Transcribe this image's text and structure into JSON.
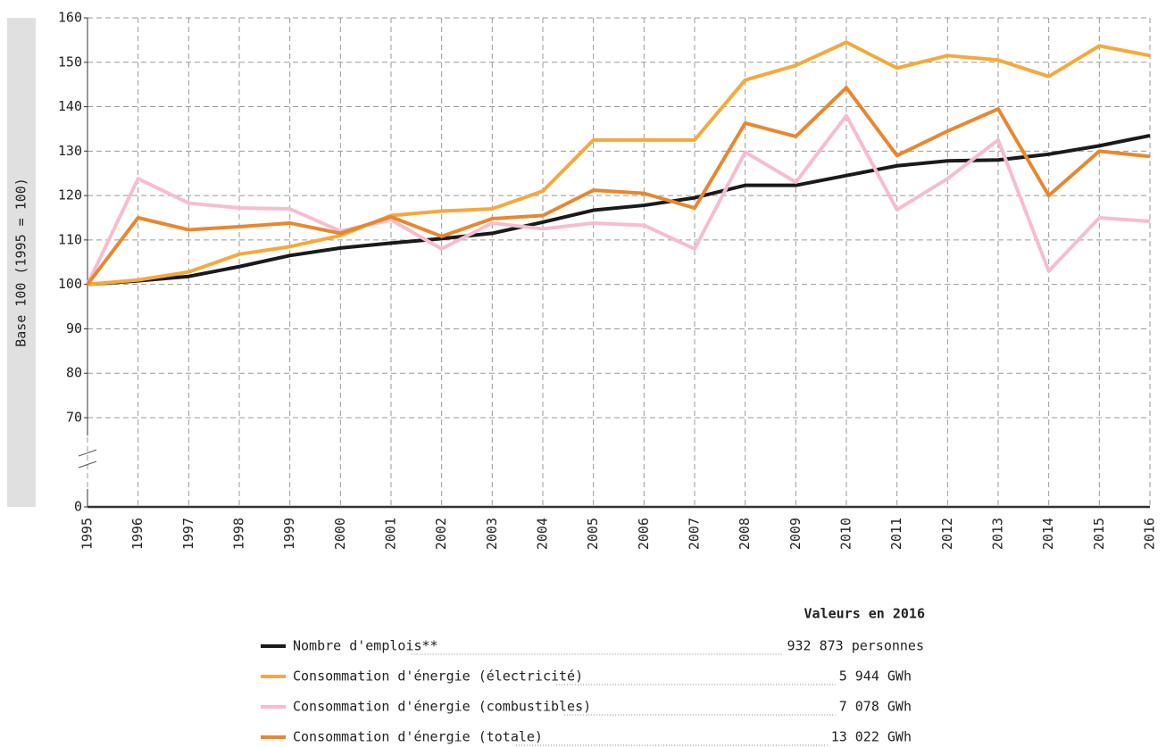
{
  "chart_data": {
    "type": "line",
    "y_label": "Base 100 (1995 = 100)",
    "x": [
      "1995",
      "1996",
      "1997",
      "1998",
      "1999",
      "2000",
      "2001",
      "2002",
      "2003",
      "2004",
      "2005",
      "2006",
      "2007",
      "2008",
      "2009",
      "2010",
      "2011",
      "2012",
      "2013",
      "2014",
      "2015",
      "2016"
    ],
    "ylim": [
      0,
      160
    ],
    "axis_break": [
      0,
      70
    ],
    "yticks": [
      0,
      70,
      80,
      90,
      100,
      110,
      120,
      130,
      140,
      150,
      160
    ],
    "grid": true,
    "legend_title": "Valeurs en 2016",
    "series": [
      {
        "name": "Nombre d'emplois**",
        "color": "#1a1a1a",
        "value_2016": "932 873 personnes",
        "values": [
          100,
          100.8,
          101.8,
          104,
          106.5,
          108.2,
          109.3,
          110.3,
          111.5,
          114,
          116.7,
          117.8,
          119.5,
          122.3,
          122.3,
          124.5,
          126.7,
          127.8,
          128,
          129.3,
          131.2,
          133.5
        ]
      },
      {
        "name": "Consommation d'énergie (électricité)",
        "color": "#f5a93a",
        "value_2016": "5 944 GWh",
        "values": [
          100,
          101,
          102.8,
          106.8,
          108.5,
          111,
          115.5,
          116.5,
          117,
          121,
          132.5,
          132.5,
          132.5,
          146,
          149.3,
          154.5,
          148.7,
          151.5,
          150.5,
          146.8,
          153.7,
          151.5
        ]
      },
      {
        "name": "Consommation d'énergie (combustibles)",
        "color": "#f7bcd0",
        "value_2016": "7 078 GWh",
        "values": [
          100,
          123.8,
          118.3,
          117.2,
          117,
          112,
          114.5,
          108,
          113.8,
          112.5,
          113.8,
          113.3,
          108,
          129.8,
          123,
          138,
          116.8,
          123.8,
          132.5,
          103,
          115,
          114.2
        ]
      },
      {
        "name": "Consommation d'énergie (totale)",
        "color": "#e8872e",
        "value_2016": "13 022 GWh",
        "values": [
          100,
          115,
          112.3,
          113,
          113.8,
          111.5,
          115.2,
          110.8,
          114.8,
          115.5,
          121.2,
          120.5,
          117.2,
          136.3,
          133.3,
          144.3,
          129,
          134.5,
          139.5,
          120,
          130,
          128.8
        ]
      }
    ]
  }
}
